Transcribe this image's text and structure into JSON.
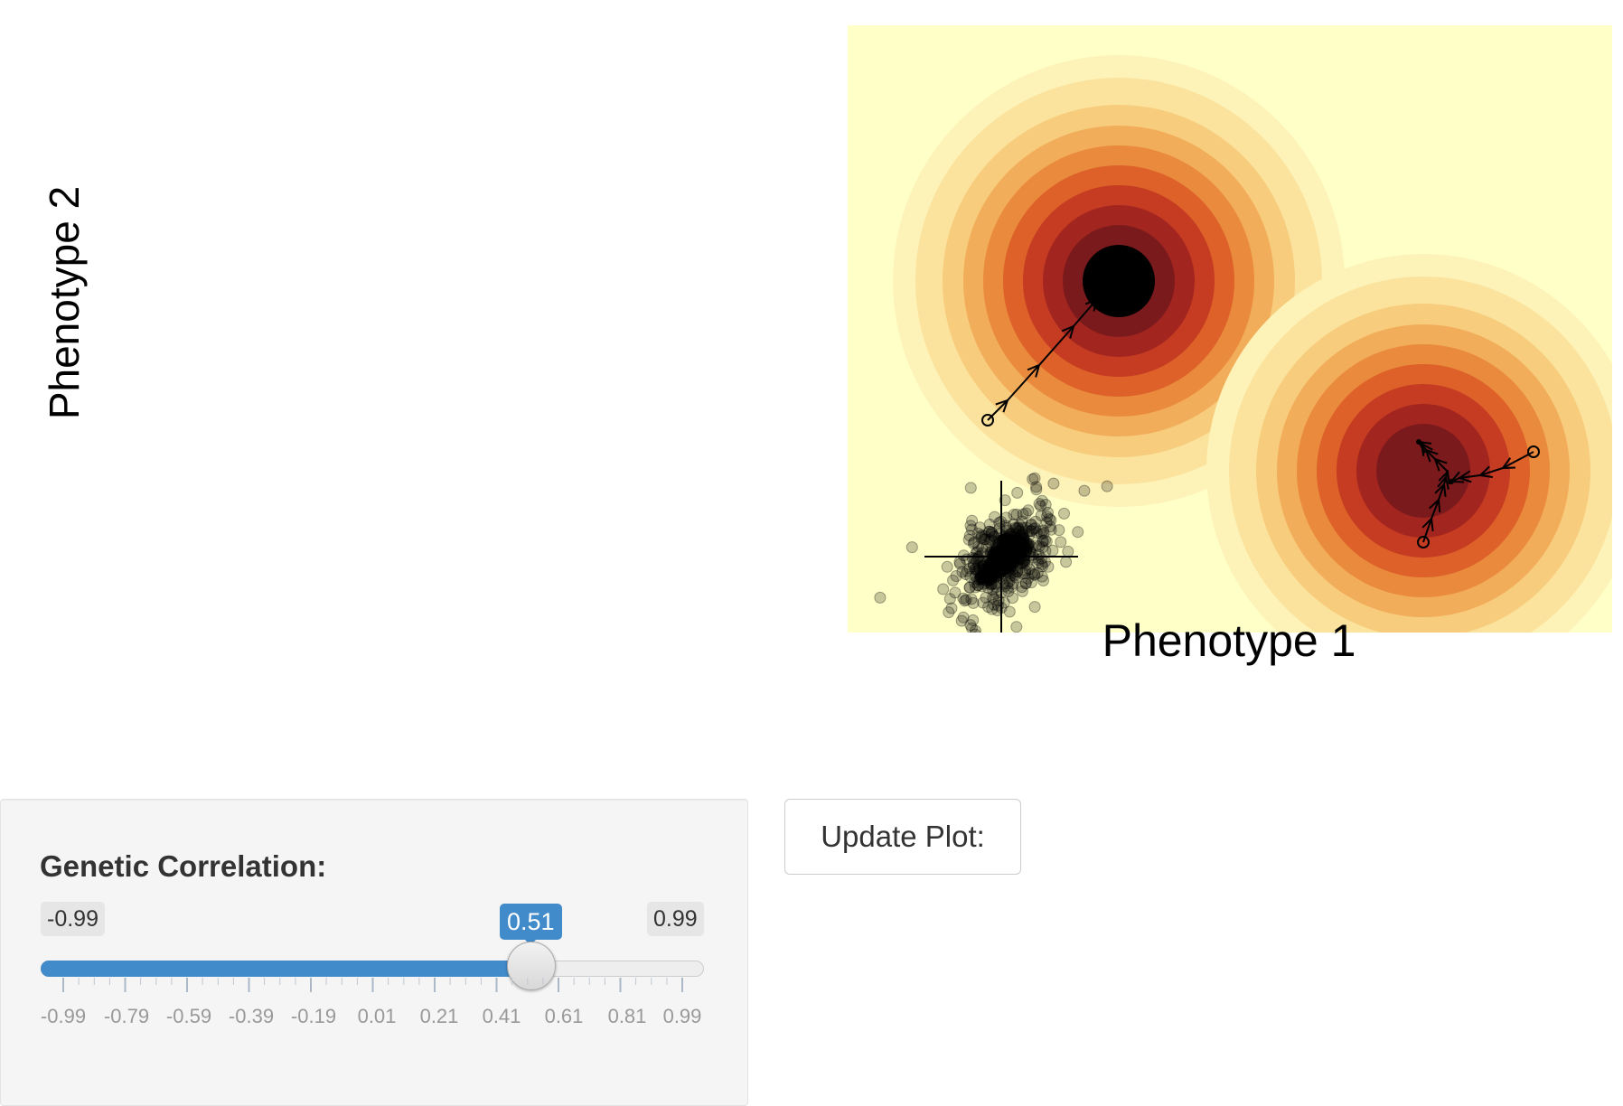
{
  "plot": {
    "xlabel": "Phenotype 1",
    "ylabel": "Phenotype 2",
    "icons": {
      "start-marker": "open-circle-icon",
      "step-marker": "arrowhead-icon",
      "population": "point-cloud"
    },
    "colors": {
      "background": "#ffffc8",
      "levels": [
        "#ffffc8",
        "#fdf3b8",
        "#fbe39e",
        "#f7cc7c",
        "#f2ad5a",
        "#ea8a3d",
        "#dd6129",
        "#c53c22",
        "#a3251f",
        "#7b1a1c"
      ]
    }
  },
  "controls": {
    "slider": {
      "label": "Genetic Correlation:",
      "min": -0.99,
      "max": 0.99,
      "value": 0.51,
      "min_label": "-0.99",
      "max_label": "0.99",
      "value_label": "0.51",
      "tick_labels": [
        "-0.99",
        "-0.79",
        "-0.59",
        "-0.39",
        "-0.19",
        "0.01",
        "0.21",
        "0.41",
        "0.61",
        "0.81",
        "0.99"
      ],
      "colors": {
        "fill": "#428bca",
        "track": "#eeeeee"
      }
    },
    "update_button": {
      "label": "Update Plot:"
    }
  }
}
